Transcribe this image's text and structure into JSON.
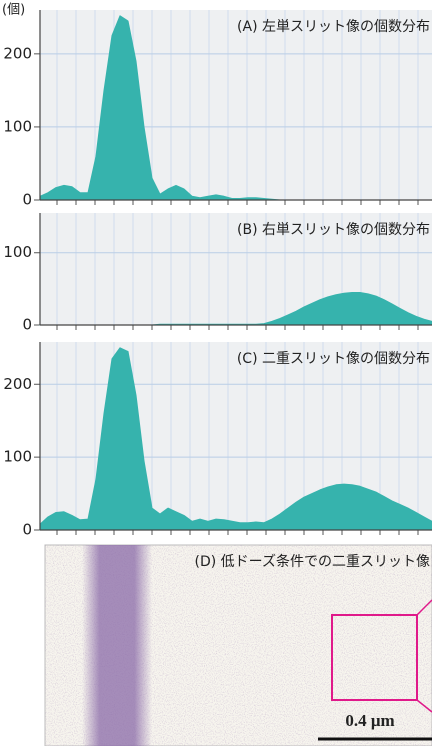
{
  "chart_data": [
    {
      "type": "area",
      "title": "(A) 左単スリット像の個数分布",
      "y_label": "(個)",
      "color": "#36b3ad",
      "categories": [
        null,
        null,
        null,
        null,
        null,
        null,
        null,
        null,
        null,
        null,
        null,
        null,
        null,
        null,
        null,
        null,
        null,
        null,
        null,
        null,
        null,
        null,
        null,
        null,
        null,
        null,
        null,
        null,
        null,
        null,
        null,
        null,
        null,
        null,
        null,
        null,
        null,
        null,
        null,
        null,
        null,
        null,
        null,
        null,
        null,
        null,
        null,
        null,
        null,
        null
      ],
      "values": [
        5,
        10,
        17,
        20,
        18,
        10,
        10,
        60,
        150,
        225,
        252,
        245,
        190,
        100,
        30,
        8,
        15,
        20,
        15,
        5,
        3,
        5,
        7,
        5,
        2,
        2,
        3,
        3,
        2,
        1,
        0,
        0,
        0,
        0,
        0,
        0,
        0,
        0,
        0,
        0,
        0,
        0,
        0,
        0,
        0,
        0,
        0,
        0,
        0,
        0
      ],
      "ylim": [
        0,
        260
      ],
      "yticks": [
        0,
        100,
        200
      ],
      "grid": true
    },
    {
      "type": "area",
      "title": "(B) 右単スリット像の個数分布",
      "color": "#36b3ad",
      "categories": [
        null,
        null,
        null,
        null,
        null,
        null,
        null,
        null,
        null,
        null,
        null,
        null,
        null,
        null,
        null,
        null,
        null,
        null,
        null,
        null,
        null,
        null,
        null,
        null,
        null,
        null,
        null,
        null,
        null,
        null,
        null,
        null,
        null,
        null,
        null,
        null,
        null,
        null,
        null,
        null,
        null,
        null,
        null,
        null,
        null,
        null,
        null,
        null,
        null,
        null
      ],
      "values": [
        0,
        0,
        0,
        0,
        0,
        0,
        0,
        0,
        0,
        0,
        0,
        0,
        0,
        0,
        0,
        1,
        1,
        1,
        1,
        1,
        1,
        1,
        1,
        1,
        1,
        1,
        1,
        1,
        2,
        5,
        9,
        14,
        19,
        25,
        30,
        35,
        39,
        42,
        44,
        45,
        45,
        43,
        40,
        35,
        29,
        23,
        17,
        12,
        8,
        5
      ],
      "ylim": [
        0,
        155
      ],
      "yticks": [
        0,
        100
      ],
      "grid": true
    },
    {
      "type": "area",
      "title": "(C) 二重スリット像の個数分布",
      "color": "#36b3ad",
      "categories": [
        null,
        null,
        null,
        null,
        null,
        null,
        null,
        null,
        null,
        null,
        null,
        null,
        null,
        null,
        null,
        null,
        null,
        null,
        null,
        null,
        null,
        null,
        null,
        null,
        null,
        null,
        null,
        null,
        null,
        null,
        null,
        null,
        null,
        null,
        null,
        null,
        null,
        null,
        null,
        null,
        null,
        null,
        null,
        null,
        null,
        null,
        null,
        null,
        null,
        null
      ],
      "values": [
        8,
        18,
        24,
        25,
        20,
        14,
        15,
        70,
        160,
        235,
        250,
        245,
        185,
        95,
        30,
        22,
        30,
        25,
        20,
        12,
        15,
        12,
        15,
        14,
        12,
        10,
        10,
        11,
        10,
        15,
        22,
        30,
        38,
        45,
        50,
        55,
        59,
        62,
        63,
        62,
        60,
        56,
        52,
        46,
        40,
        35,
        30,
        24,
        18,
        12
      ],
      "ylim": [
        0,
        258
      ],
      "yticks": [
        0,
        100,
        200
      ],
      "grid": true
    }
  ],
  "panel_d": {
    "title": "(D) 低ドーズ条件での二重スリット像",
    "scale_bar": "0.4 μm"
  }
}
